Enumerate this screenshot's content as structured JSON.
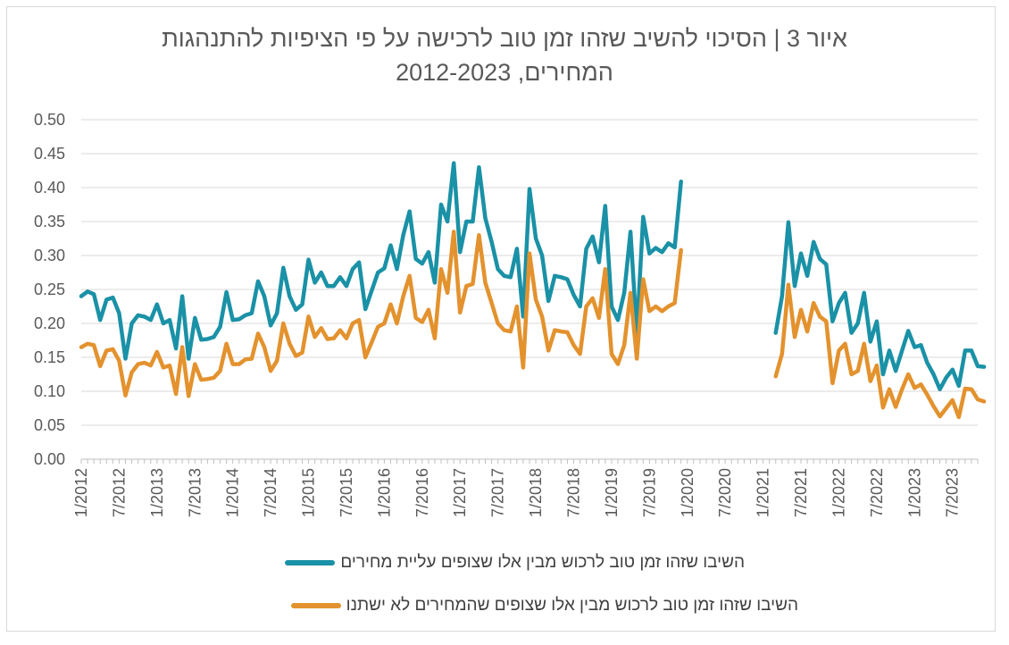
{
  "chart_data": {
    "type": "line",
    "title_lines": [
      "איור 3 | הסיכוי להשיב שזהו זמן טוב לרכישה על פי הציפיות להתנהגות",
      "המחירים, 2012-2023"
    ],
    "xlabel": "",
    "ylabel": "",
    "x_start": "1/2012",
    "x_end": "11/2023",
    "x_ticks": [
      "1/2012",
      "7/2012",
      "1/2013",
      "7/2013",
      "1/2014",
      "7/2014",
      "1/2015",
      "7/2015",
      "1/2016",
      "7/2016",
      "1/2017",
      "7/2017",
      "1/2018",
      "7/2018",
      "1/2019",
      "7/2019",
      "1/2020",
      "7/2020",
      "1/2021",
      "7/2021",
      "1/2022",
      "7/2022",
      "1/2023",
      "7/2023"
    ],
    "ylim": [
      0,
      0.5
    ],
    "y_ticks": [
      "0.00",
      "0.05",
      "0.10",
      "0.15",
      "0.20",
      "0.25",
      "0.30",
      "0.35",
      "0.40",
      "0.45",
      "0.50"
    ],
    "grid": "horizontal",
    "legend_position": "bottom",
    "series": [
      {
        "name": "השיבו שזהו זמן טוב לרכוש מבין אלו שצופים עליית מחירים",
        "color": "#1a91a6",
        "segments": [
          {
            "start": "1/2012",
            "values": [
              0.24,
              0.247,
              0.243,
              0.205,
              0.235,
              0.238,
              0.215,
              0.148,
              0.2,
              0.212,
              0.21,
              0.205,
              0.228,
              0.2,
              0.205,
              0.163,
              0.24,
              0.148,
              0.208,
              0.176,
              0.177,
              0.18,
              0.195,
              0.246,
              0.205,
              0.206,
              0.212,
              0.215,
              0.262,
              0.24,
              0.197,
              0.215,
              0.282,
              0.24,
              0.22,
              0.228,
              0.294,
              0.26,
              0.275,
              0.255,
              0.255,
              0.268,
              0.255,
              0.28,
              0.29,
              0.221,
              0.248,
              0.275,
              0.281,
              0.315,
              0.28,
              0.33,
              0.365,
              0.295,
              0.288,
              0.305,
              0.26,
              0.375,
              0.35,
              0.436,
              0.305,
              0.35,
              0.35,
              0.43,
              0.355,
              0.32,
              0.28,
              0.27,
              0.268,
              0.31,
              0.21,
              0.398,
              0.325,
              0.3,
              0.233,
              0.27,
              0.268,
              0.265,
              0.242,
              0.225,
              0.31,
              0.328,
              0.29,
              0.373,
              0.225,
              0.205,
              0.245,
              0.335,
              0.185,
              0.357,
              0.303,
              0.311,
              0.305,
              0.318,
              0.312,
              0.409
            ]
          },
          {
            "start": "3/2021",
            "values": [
              0.186,
              0.24,
              0.349,
              0.255,
              0.303,
              0.27,
              0.32,
              0.295,
              0.287,
              0.203,
              0.23,
              0.245,
              0.186,
              0.2,
              0.245,
              0.173,
              0.203,
              0.125,
              0.16,
              0.13,
              0.16,
              0.189,
              0.165,
              0.168,
              0.142,
              0.125,
              0.103,
              0.12,
              0.132,
              0.108,
              0.16,
              0.16,
              0.137,
              0.136
            ]
          }
        ]
      },
      {
        "name": "השיבו שזהו זמן טוב לרכוש מבין אלו שצופים שהמחירים לא ישתנו",
        "color": "#e3922e",
        "segments": [
          {
            "start": "1/2012",
            "values": [
              0.165,
              0.17,
              0.168,
              0.137,
              0.16,
              0.162,
              0.145,
              0.094,
              0.128,
              0.14,
              0.142,
              0.138,
              0.158,
              0.135,
              0.138,
              0.096,
              0.165,
              0.093,
              0.14,
              0.117,
              0.118,
              0.12,
              0.13,
              0.17,
              0.14,
              0.14,
              0.147,
              0.148,
              0.185,
              0.165,
              0.13,
              0.145,
              0.2,
              0.17,
              0.152,
              0.157,
              0.21,
              0.18,
              0.193,
              0.177,
              0.178,
              0.19,
              0.178,
              0.2,
              0.205,
              0.15,
              0.172,
              0.195,
              0.2,
              0.228,
              0.2,
              0.24,
              0.27,
              0.208,
              0.202,
              0.22,
              0.178,
              0.28,
              0.245,
              0.335,
              0.216,
              0.255,
              0.258,
              0.33,
              0.26,
              0.23,
              0.2,
              0.19,
              0.188,
              0.225,
              0.135,
              0.303,
              0.235,
              0.21,
              0.16,
              0.19,
              0.188,
              0.187,
              0.168,
              0.155,
              0.225,
              0.237,
              0.208,
              0.28,
              0.155,
              0.14,
              0.168,
              0.245,
              0.148,
              0.265,
              0.218,
              0.225,
              0.218,
              0.225,
              0.23,
              0.308
            ]
          },
          {
            "start": "3/2021",
            "values": [
              0.122,
              0.155,
              0.257,
              0.18,
              0.22,
              0.188,
              0.23,
              0.21,
              0.203,
              0.112,
              0.16,
              0.17,
              0.125,
              0.13,
              0.17,
              0.115,
              0.138,
              0.076,
              0.103,
              0.077,
              0.103,
              0.125,
              0.105,
              0.11,
              0.095,
              0.078,
              0.063,
              0.075,
              0.087,
              0.062,
              0.104,
              0.103,
              0.088,
              0.085
            ]
          }
        ]
      }
    ]
  }
}
